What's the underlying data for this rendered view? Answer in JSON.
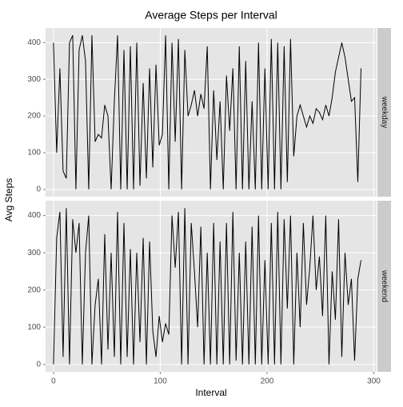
{
  "chart_data": {
    "type": "line",
    "title": "Average Steps per Interval",
    "xlabel": "Interval",
    "ylabel": "Avg Steps",
    "x": [
      0,
      3,
      6,
      9,
      12,
      15,
      18,
      21,
      24,
      27,
      30,
      33,
      36,
      39,
      42,
      45,
      48,
      51,
      54,
      57,
      60,
      63,
      66,
      69,
      72,
      75,
      78,
      81,
      84,
      87,
      90,
      93,
      96,
      99,
      102,
      105,
      108,
      111,
      114,
      117,
      120,
      123,
      126,
      129,
      132,
      135,
      138,
      141,
      144,
      147,
      150,
      153,
      156,
      159,
      162,
      165,
      168,
      171,
      174,
      177,
      180,
      183,
      186,
      189,
      192,
      195,
      198,
      201,
      204,
      207,
      210,
      213,
      216,
      219,
      222,
      225,
      228,
      231,
      234,
      237,
      240,
      243,
      246,
      249,
      252,
      255,
      258,
      261,
      264,
      267,
      270,
      273,
      276,
      279,
      282,
      285,
      288
    ],
    "series": [
      {
        "name": "weekday",
        "color": "#000000",
        "values": [
          400,
          100,
          330,
          50,
          30,
          400,
          420,
          0,
          380,
          420,
          350,
          0,
          420,
          130,
          150,
          140,
          230,
          200,
          0,
          240,
          420,
          0,
          380,
          0,
          390,
          0,
          400,
          10,
          290,
          30,
          330,
          60,
          340,
          120,
          150,
          420,
          0,
          400,
          130,
          410,
          0,
          380,
          200,
          230,
          270,
          200,
          260,
          220,
          390,
          0,
          270,
          80,
          240,
          0,
          310,
          160,
          330,
          0,
          390,
          0,
          350,
          0,
          240,
          0,
          400,
          0,
          330,
          0,
          410,
          0,
          400,
          0,
          390,
          20,
          410,
          90,
          200,
          230,
          200,
          170,
          200,
          180,
          220,
          210,
          190,
          230,
          200,
          250,
          320,
          360,
          400,
          360,
          300,
          240,
          250,
          20,
          330
        ]
      },
      {
        "name": "weekend",
        "color": "#000000",
        "values": [
          0,
          340,
          410,
          20,
          420,
          0,
          390,
          300,
          380,
          0,
          300,
          400,
          0,
          160,
          230,
          0,
          350,
          40,
          300,
          20,
          410,
          0,
          380,
          20,
          310,
          0,
          300,
          60,
          340,
          0,
          330,
          90,
          20,
          130,
          60,
          110,
          80,
          400,
          260,
          410,
          0,
          420,
          0,
          380,
          250,
          100,
          370,
          0,
          300,
          0,
          380,
          0,
          330,
          0,
          380,
          0,
          410,
          10,
          300,
          0,
          330,
          0,
          370,
          0,
          400,
          0,
          280,
          0,
          380,
          0,
          410,
          0,
          390,
          150,
          400,
          0,
          300,
          100,
          380,
          160,
          260,
          400,
          200,
          290,
          130,
          400,
          0,
          250,
          120,
          390,
          20,
          300,
          160,
          230,
          10,
          230,
          280
        ]
      }
    ],
    "xlim": [
      -7.4,
      302.6
    ],
    "xticks": [
      0,
      100,
      200,
      300
    ],
    "ylim": [
      -20,
      440
    ],
    "yticks": [
      0,
      100,
      200,
      300,
      400
    ],
    "grid": true
  }
}
